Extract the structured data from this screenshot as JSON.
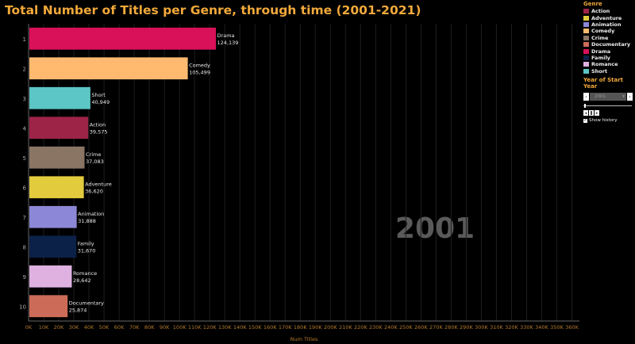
{
  "title": "Total Number of Titles per Genre, through time (2001-2021)",
  "legend": {
    "title": "Genre",
    "items": [
      {
        "label": "Action",
        "color": "#9e2447"
      },
      {
        "label": "Adventure",
        "color": "#e2cb3c"
      },
      {
        "label": "Animation",
        "color": "#8c87d6"
      },
      {
        "label": "Comedy",
        "color": "#ffba70"
      },
      {
        "label": "Crime",
        "color": "#8a7565"
      },
      {
        "label": "Documentary",
        "color": "#cc6b57"
      },
      {
        "label": "Drama",
        "color": "#d91159"
      },
      {
        "label": "Family",
        "color": "#0c2148"
      },
      {
        "label": "Romance",
        "color": "#deb1e1"
      },
      {
        "label": "Short",
        "color": "#5bc6c5"
      }
    ]
  },
  "filter": {
    "title": "Year of Start Year",
    "selected": "2001",
    "prev_icon": "chevron-left-icon",
    "next_icon": "chevron-right-icon",
    "show_history_label": "Show history",
    "show_history_checked": true,
    "slider_value": 2001
  },
  "chart_data": {
    "type": "bar",
    "orientation": "horizontal",
    "title": "Total Number of Titles per Genre, through time (2001-2021)",
    "xlabel": "Num Titles",
    "ylabel": "",
    "xlim": [
      0,
      365000
    ],
    "x_ticks": [
      "0K",
      "10K",
      "20K",
      "30K",
      "40K",
      "50K",
      "60K",
      "70K",
      "80K",
      "90K",
      "100K",
      "110K",
      "120K",
      "130K",
      "140K",
      "150K",
      "160K",
      "170K",
      "180K",
      "190K",
      "200K",
      "210K",
      "220K",
      "230K",
      "240K",
      "250K",
      "260K",
      "270K",
      "280K",
      "290K",
      "300K",
      "310K",
      "320K",
      "330K",
      "340K",
      "350K",
      "360K"
    ],
    "ranks": [
      "1",
      "2",
      "3",
      "4",
      "5",
      "6",
      "7",
      "8",
      "9",
      "10"
    ],
    "categories": [
      "Drama",
      "Comedy",
      "Short",
      "Action",
      "Crime",
      "Adventure",
      "Animation",
      "Family",
      "Romance",
      "Documentary"
    ],
    "values": [
      124139,
      105499,
      40949,
      39575,
      37083,
      36620,
      31888,
      31670,
      28642,
      25874
    ],
    "value_labels": [
      "124,139",
      "105,499",
      "40,949",
      "39,575",
      "37,083",
      "36,620",
      "31,888",
      "31,670",
      "28,642",
      "25,874"
    ],
    "colors": [
      "#d91159",
      "#ffba70",
      "#5bc6c5",
      "#9e2447",
      "#8a7565",
      "#e2cb3c",
      "#8c87d6",
      "#0c2148",
      "#deb1e1",
      "#cc6b57"
    ],
    "year_label": "2001",
    "grid": true,
    "legend_position": "right"
  }
}
